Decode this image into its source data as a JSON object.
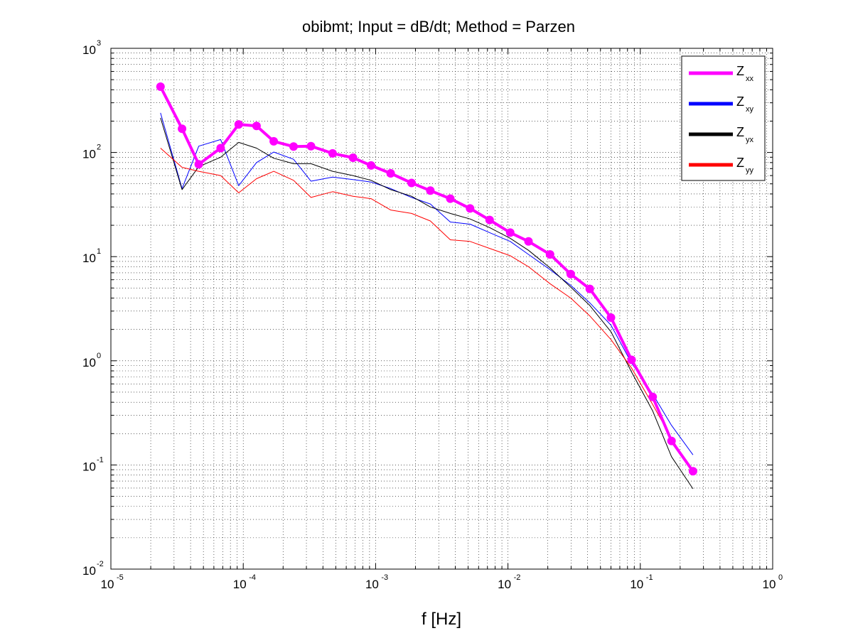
{
  "chart_data": {
    "type": "line",
    "title": "obibmt; Input = dB/dt; Method = Parzen",
    "xlabel": "f [Hz]",
    "ylabel": "",
    "xscale": "log",
    "yscale": "log",
    "xlim": [
      1e-05,
      1
    ],
    "ylim": [
      0.01,
      1000
    ],
    "grid": true,
    "legend_position": "top-right",
    "x_ticks": [
      {
        "base": "10",
        "exp": "-5"
      },
      {
        "base": "10",
        "exp": "-4"
      },
      {
        "base": "10",
        "exp": "-3"
      },
      {
        "base": "10",
        "exp": "-2"
      },
      {
        "base": "10",
        "exp": "-1"
      },
      {
        "base": "10",
        "exp": "0"
      }
    ],
    "y_ticks": [
      {
        "base": "10",
        "exp": "-2"
      },
      {
        "base": "10",
        "exp": "-1"
      },
      {
        "base": "10",
        "exp": "0"
      },
      {
        "base": "10",
        "exp": "1"
      },
      {
        "base": "10",
        "exp": "2"
      },
      {
        "base": "10",
        "exp": "3"
      }
    ],
    "series": [
      {
        "name": "Z",
        "sub": "xx",
        "color": "#ff00ff",
        "width": 4,
        "markers": true,
        "x": [
          2.37e-05,
          3.45e-05,
          4.61e-05,
          6.75e-05,
          9.24e-05,
          0.000126,
          0.00017,
          0.00024,
          0.000325,
          0.000473,
          0.000675,
          0.000924,
          0.0013,
          0.00187,
          0.00259,
          0.00367,
          0.00517,
          0.00727,
          0.0104,
          0.0143,
          0.0208,
          0.0298,
          0.0415,
          0.06,
          0.0859,
          0.124,
          0.172,
          0.25
        ],
        "y": [
          428,
          169,
          77,
          110,
          186,
          180,
          128,
          114,
          115,
          98,
          89,
          75,
          63,
          51,
          43,
          36,
          29,
          22.5,
          17,
          14,
          10.5,
          6.8,
          4.9,
          2.6,
          1.02,
          0.45,
          0.17,
          0.087
        ]
      },
      {
        "name": "Z",
        "sub": "xy",
        "color": "#0000ff",
        "width": 1,
        "markers": false,
        "x": [
          2.37e-05,
          3.45e-05,
          4.61e-05,
          6.75e-05,
          9.24e-05,
          0.000126,
          0.00017,
          0.00024,
          0.000325,
          0.000473,
          0.000675,
          0.000924,
          0.0013,
          0.00187,
          0.00259,
          0.00367,
          0.00517,
          0.00727,
          0.0104,
          0.0143,
          0.0208,
          0.0298,
          0.0415,
          0.06,
          0.0859,
          0.124,
          0.172,
          0.25
        ],
        "y": [
          240,
          45,
          115,
          133,
          48,
          80,
          101,
          86,
          53,
          58,
          55,
          52,
          45,
          37,
          32,
          21.5,
          20.5,
          17,
          14,
          10.5,
          7.5,
          5.3,
          3.6,
          2.2,
          0.95,
          0.48,
          0.24,
          0.125
        ]
      },
      {
        "name": "Z",
        "sub": "yx",
        "color": "#000000",
        "width": 1,
        "markers": false,
        "x": [
          2.37e-05,
          3.45e-05,
          4.61e-05,
          6.75e-05,
          9.24e-05,
          0.000126,
          0.00017,
          0.00024,
          0.000325,
          0.000473,
          0.000675,
          0.000924,
          0.0013,
          0.00187,
          0.00259,
          0.00367,
          0.00517,
          0.00727,
          0.0104,
          0.0143,
          0.0208,
          0.0298,
          0.0415,
          0.06,
          0.0859,
          0.124,
          0.172,
          0.25
        ],
        "y": [
          215,
          44,
          73,
          90,
          125,
          110,
          88,
          78,
          78,
          66,
          60,
          54,
          44,
          38,
          30,
          26,
          23,
          19,
          15,
          11.5,
          7.8,
          5.1,
          3.4,
          1.9,
          0.78,
          0.33,
          0.12,
          0.059
        ]
      },
      {
        "name": "Z",
        "sub": "yy",
        "color": "#ff0000",
        "width": 1,
        "markers": false,
        "x": [
          2.37e-05,
          3.45e-05,
          4.61e-05,
          6.75e-05,
          9.24e-05,
          0.000126,
          0.00017,
          0.00024,
          0.000325,
          0.000473,
          0.000675,
          0.000924,
          0.0013,
          0.00187,
          0.00259,
          0.00367,
          0.00517,
          0.00727,
          0.0104,
          0.0143,
          0.0208,
          0.0298,
          0.0415,
          0.06,
          0.0859,
          0.124,
          0.172,
          0.25
        ],
        "y": [
          110,
          72,
          66,
          60,
          41,
          56,
          66,
          54,
          37,
          42,
          38,
          36,
          28,
          26,
          22,
          14.5,
          14,
          12,
          10.2,
          8,
          5.5,
          4,
          2.7,
          1.6,
          0.85,
          0.38,
          0.18,
          0.085
        ]
      }
    ]
  }
}
